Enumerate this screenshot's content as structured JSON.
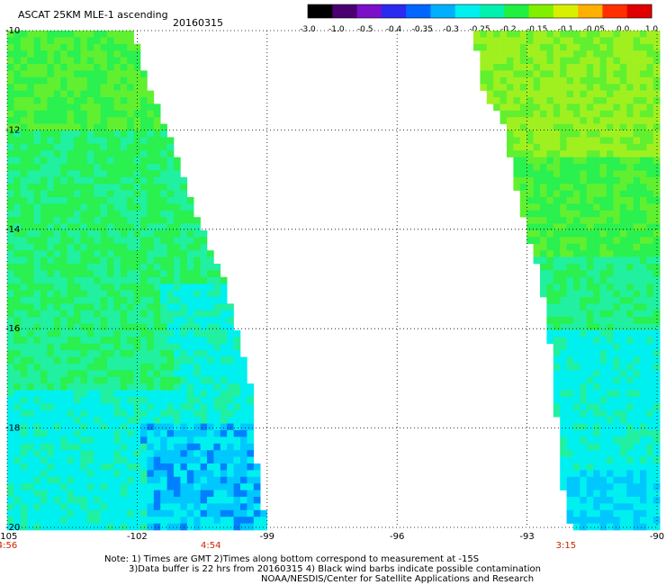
{
  "title": "ASCAT 25KM MLE-1 ascending",
  "date": "20160315",
  "colorbar": {
    "tick_labels": [
      "-3.0",
      "-1.0",
      "-0.5",
      "-0.4",
      "-0.35",
      "-0.3",
      "-0.25",
      "-0.2",
      "-0.15",
      "-0.1",
      "-0.05",
      "0.0",
      "1.0"
    ],
    "colors": [
      "#000000",
      "#4a0070",
      "#7a10c8",
      "#2a2af0",
      "#0066ff",
      "#00b0ff",
      "#00f0f0",
      "#00f0b0",
      "#20f040",
      "#80f000",
      "#d8f000",
      "#ffb000",
      "#ff3000",
      "#e00000"
    ]
  },
  "axes": {
    "lat_labels": [
      "-10",
      "-12",
      "-14",
      "-16",
      "-18",
      "-20"
    ],
    "lon_labels": [
      "-105",
      "-102",
      "-99",
      "-96",
      "-93",
      "-90"
    ],
    "lat_range": [
      -20,
      -10
    ],
    "lon_range": [
      -105,
      -90
    ]
  },
  "time_labels": [
    {
      "text": "4:56",
      "lon": -105
    },
    {
      "text": "4:54",
      "lon": -100.3
    },
    {
      "text": "3:15",
      "lon": -92.1
    }
  ],
  "notes": {
    "line1": "Note: 1) Times are GMT 2)Times along bottom correspond to measurement at -15S",
    "line2": "3)Data buffer is 22 hrs from 20160315 4) Black wind barbs indicate possible contamination",
    "line3": "NOAA/NESDIS/Center for Satellite Applications and Research"
  },
  "swaths": {
    "west_edge_lon_by_lat": [
      [
        -10,
        -102.1
      ],
      [
        -11,
        -101.8
      ],
      [
        -12,
        -101.3
      ],
      [
        -13,
        -100.9
      ],
      [
        -14,
        -100.5
      ],
      [
        -15,
        -100.0
      ],
      [
        -16,
        -99.7
      ],
      [
        -17,
        -99.4
      ],
      [
        -18,
        -99.3
      ],
      [
        -19,
        -99.2
      ],
      [
        -20,
        -99.0
      ]
    ],
    "east_edge_lon_by_lat": [
      [
        -10,
        -94.2
      ],
      [
        -11,
        -94.1
      ],
      [
        -12,
        -93.5
      ],
      [
        -13,
        -93.3
      ],
      [
        -14,
        -93.0
      ],
      [
        -15,
        -92.7
      ],
      [
        -16,
        -92.5
      ],
      [
        -17,
        -92.4
      ],
      [
        -18,
        -92.3
      ],
      [
        -19,
        -92.2
      ],
      [
        -20,
        -92.0
      ]
    ]
  },
  "palette": {
    "green": "#2af050",
    "light_green": "#60f030",
    "yellow_green": "#a0f020",
    "aqua_green": "#20f0a0",
    "cyan": "#00f0f0",
    "light_blue": "#00c8ff",
    "blue": "#0080ff"
  }
}
